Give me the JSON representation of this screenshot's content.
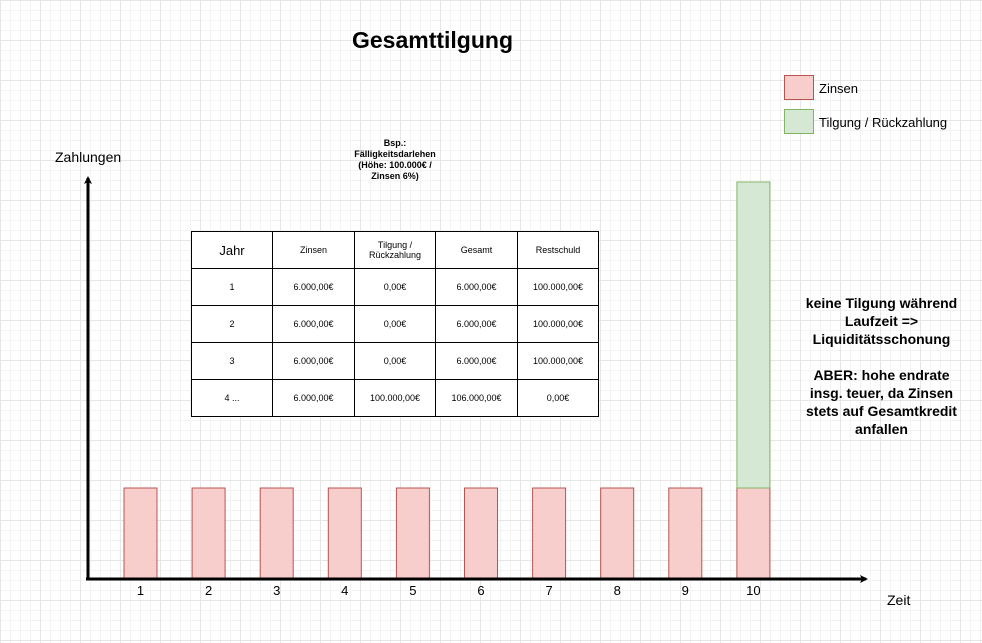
{
  "title": "Gesamttilgung",
  "legend": [
    {
      "label": "Zinsen",
      "fill": "#f8cecc",
      "stroke": "#b85450"
    },
    {
      "label": "Tilgung / Rückzahlung",
      "fill": "#d5e8d4",
      "stroke": "#82b366"
    }
  ],
  "axes": {
    "ylabel": "Zahlungen",
    "xlabel": "Zeit"
  },
  "note_lines": [
    "Bsp.:",
    "Fälligkeitsdarlehen",
    "(Höhe: 100.000€ /",
    "Zinsen 6%)"
  ],
  "table": {
    "headers": [
      "Jahr",
      "Zinsen",
      "Tilgung / Rückzahlung",
      "Gesamt",
      "Restschuld"
    ],
    "rows": [
      [
        "1",
        "6.000,00€",
        "0,00€",
        "6.000,00€",
        "100.000,00€"
      ],
      [
        "2",
        "6.000,00€",
        "0,00€",
        "6.000,00€",
        "100.000,00€"
      ],
      [
        "3",
        "6.000,00€",
        "0,00€",
        "6.000,00€",
        "100.000,00€"
      ],
      [
        "4 ...",
        "6.000,00€",
        "100.000,00€",
        "106.000,00€",
        "0,00€"
      ]
    ]
  },
  "info_lines": [
    "keine Tilgung während",
    "Laufzeit =>",
    "Liquiditätsschonung",
    "",
    "ABER: hohe endrate",
    "insg. teuer, da Zinsen",
    "stets auf Gesamtkredit",
    "anfallen"
  ],
  "chart_data": {
    "type": "bar",
    "stacked": true,
    "categories": [
      "1",
      "2",
      "3",
      "4",
      "5",
      "6",
      "7",
      "8",
      "9",
      "10"
    ],
    "series": [
      {
        "name": "Zinsen",
        "values": [
          6000,
          6000,
          6000,
          6000,
          6000,
          6000,
          6000,
          6000,
          6000,
          6000
        ],
        "fill": "#f8cecc",
        "stroke": "#b85450"
      },
      {
        "name": "Tilgung / Rückzahlung",
        "values": [
          0,
          0,
          0,
          0,
          0,
          0,
          0,
          0,
          0,
          100000
        ],
        "fill": "#d5e8d4",
        "stroke": "#82b366"
      }
    ],
    "xlabel": "Zeit",
    "ylabel": "Zahlungen",
    "grid": true,
    "legend": "top-right"
  }
}
